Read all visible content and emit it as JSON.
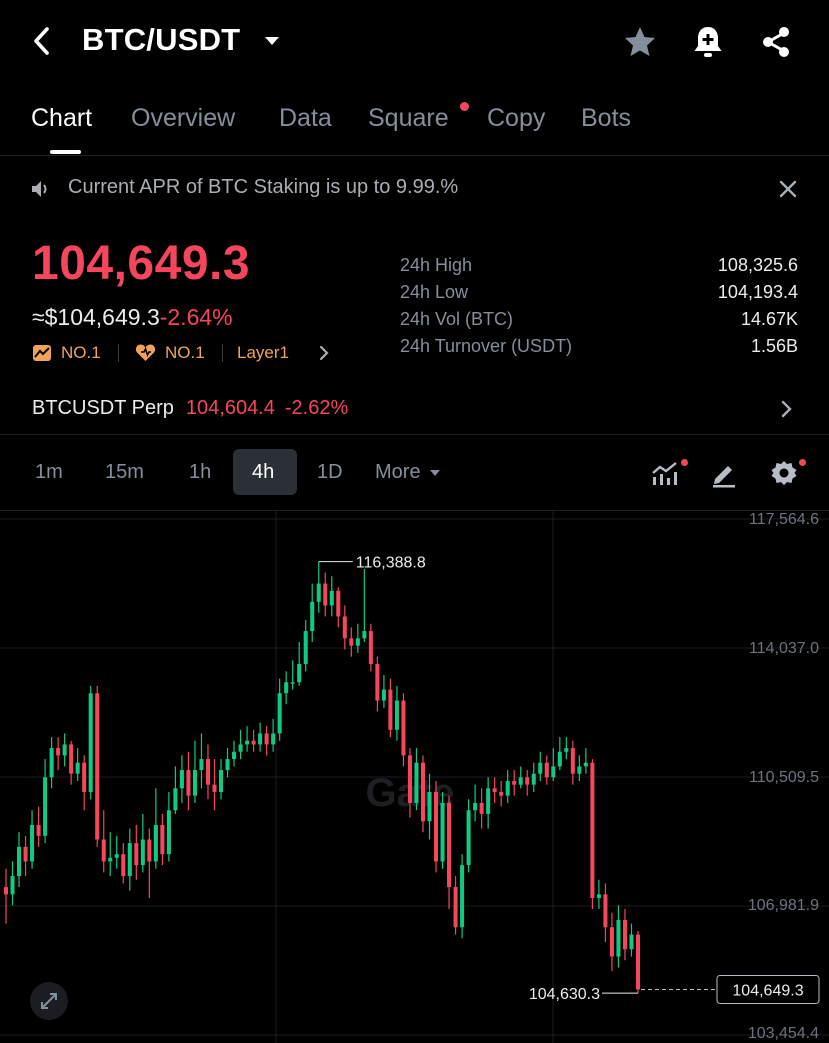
{
  "header": {
    "pair": "BTC/USDT"
  },
  "tabs": [
    {
      "label": "Chart",
      "active": true
    },
    {
      "label": "Overview",
      "active": false
    },
    {
      "label": "Data",
      "active": false
    },
    {
      "label": "Square",
      "active": false,
      "dot": true
    },
    {
      "label": "Copy",
      "active": false
    },
    {
      "label": "Bots",
      "active": false
    }
  ],
  "announcement": {
    "text": "Current APR of BTC Staking is up to 9.99.%"
  },
  "price": {
    "last": "104,649.3",
    "fiat": "≈$104,649.3",
    "change": "-2.64%",
    "tags": [
      "NO.1",
      "NO.1",
      "Layer1"
    ]
  },
  "stats": [
    {
      "label": "24h High",
      "value": "108,325.6"
    },
    {
      "label": "24h Low",
      "value": "104,193.4"
    },
    {
      "label": "24h Vol (BTC)",
      "value": "14.67K"
    },
    {
      "label": "24h Turnover (USDT)",
      "value": "1.56B"
    }
  ],
  "perp": {
    "name": "BTCUSDT Perp",
    "price": "104,604.4",
    "change": "-2.62%"
  },
  "intervals": {
    "items": [
      "1m",
      "15m",
      "1h",
      "4h",
      "1D"
    ],
    "active": "4h",
    "more_label": "More"
  },
  "chart_data": {
    "type": "candlestick",
    "y_ticks": [
      "117,564.6",
      "114,037.0",
      "110,509.5",
      "106,981.9",
      "103,454.4"
    ],
    "ylim": [
      103454.4,
      117564.6
    ],
    "high_marker": "116,388.8",
    "low_marker": "104,630.3",
    "last_price_label": "104,649.3",
    "colors": {
      "up": "#0ecb81",
      "down": "#f6465d"
    },
    "candles": [
      [
        107500,
        107300,
        108000,
        106500
      ],
      [
        107300,
        107800,
        108200,
        107000
      ],
      [
        107800,
        108600,
        109000,
        107500
      ],
      [
        108600,
        108200,
        108900,
        107800
      ],
      [
        108200,
        109200,
        109600,
        108000
      ],
      [
        109200,
        108900,
        109700,
        108600
      ],
      [
        108900,
        110500,
        111000,
        108700
      ],
      [
        110500,
        111300,
        111600,
        110200
      ],
      [
        111300,
        111100,
        111600,
        110700
      ],
      [
        111100,
        111400,
        111700,
        110800
      ],
      [
        111400,
        110600,
        111500,
        110300
      ],
      [
        110600,
        110900,
        111300,
        110400
      ],
      [
        110900,
        110100,
        111100,
        109600
      ],
      [
        110100,
        112800,
        113000,
        109900
      ],
      [
        112800,
        108800,
        113000,
        108600
      ],
      [
        108800,
        108200,
        109600,
        107900
      ],
      [
        108200,
        108300,
        109000,
        107800
      ],
      [
        108300,
        108400,
        108900,
        108000
      ],
      [
        108400,
        107800,
        108700,
        107600
      ],
      [
        107800,
        108700,
        109100,
        107400
      ],
      [
        108700,
        108100,
        109200,
        107700
      ],
      [
        108100,
        108800,
        109500,
        107900
      ],
      [
        108800,
        108200,
        109100,
        107200
      ],
      [
        108200,
        109200,
        110200,
        108000
      ],
      [
        109200,
        108400,
        109500,
        108100
      ],
      [
        108400,
        109600,
        110100,
        108200
      ],
      [
        109600,
        110200,
        110800,
        109500
      ],
      [
        110200,
        110700,
        111100,
        109800
      ],
      [
        110700,
        110000,
        111200,
        109600
      ],
      [
        110000,
        110700,
        111500,
        109800
      ],
      [
        110700,
        111000,
        111700,
        110200
      ],
      [
        111000,
        110300,
        111400,
        109900
      ],
      [
        110300,
        110100,
        111000,
        109600
      ],
      [
        110100,
        110700,
        111000,
        109900
      ],
      [
        110700,
        111000,
        111300,
        110500
      ],
      [
        111000,
        111200,
        111500,
        110800
      ],
      [
        111200,
        111400,
        111800,
        111000
      ],
      [
        111400,
        111500,
        111900,
        111200
      ],
      [
        111500,
        111400,
        111800,
        111200
      ],
      [
        111400,
        111700,
        112000,
        111200
      ],
      [
        111700,
        111400,
        111900,
        111100
      ],
      [
        111400,
        111700,
        112100,
        111200
      ],
      [
        111700,
        112800,
        113200,
        111500
      ],
      [
        112800,
        113100,
        113400,
        112500
      ],
      [
        113100,
        113100,
        113700,
        112900
      ],
      [
        113100,
        113600,
        114200,
        113000
      ],
      [
        113600,
        114500,
        114800,
        113400
      ],
      [
        114500,
        115300,
        115800,
        114200
      ],
      [
        115300,
        115800,
        116400,
        115000
      ],
      [
        115800,
        115200,
        116100,
        114900
      ],
      [
        115200,
        115600,
        116000,
        114900
      ],
      [
        115600,
        114900,
        115700,
        114600
      ],
      [
        114900,
        114300,
        115200,
        114000
      ],
      [
        114300,
        114100,
        114600,
        113800
      ],
      [
        114100,
        114300,
        114700,
        113900
      ],
      [
        114300,
        114500,
        116200,
        114200
      ],
      [
        114500,
        113600,
        114700,
        113400
      ],
      [
        113600,
        112600,
        113800,
        112300
      ],
      [
        112600,
        112900,
        113300,
        112400
      ],
      [
        112900,
        111800,
        113200,
        111600
      ],
      [
        111800,
        112600,
        113000,
        111500
      ],
      [
        112600,
        111100,
        112800,
        110800
      ],
      [
        111100,
        109800,
        111300,
        109400
      ],
      [
        109800,
        110900,
        111300,
        109600
      ],
      [
        110900,
        109300,
        111100,
        109000
      ],
      [
        109300,
        110100,
        110600,
        108800
      ],
      [
        110100,
        108200,
        110400,
        107900
      ],
      [
        108200,
        109800,
        110100,
        108000
      ],
      [
        109800,
        107500,
        110000,
        106900
      ],
      [
        107500,
        106400,
        107800,
        106200
      ],
      [
        106400,
        108100,
        108400,
        106100
      ],
      [
        108100,
        109600,
        109900,
        107900
      ],
      [
        109600,
        109800,
        110300,
        109300
      ],
      [
        109800,
        109500,
        110200,
        109100
      ],
      [
        109500,
        110200,
        110500,
        109100
      ],
      [
        110200,
        110100,
        110500,
        109800
      ],
      [
        110100,
        110000,
        110400,
        109700
      ],
      [
        110000,
        110400,
        110700,
        109800
      ],
      [
        110400,
        110300,
        110700,
        110000
      ],
      [
        110300,
        110500,
        110800,
        110200
      ],
      [
        110500,
        110300,
        110700,
        110000
      ],
      [
        110300,
        110600,
        110900,
        110100
      ],
      [
        110600,
        110900,
        111200,
        110400
      ],
      [
        110900,
        110500,
        111100,
        110300
      ],
      [
        110500,
        110800,
        111300,
        110400
      ],
      [
        110800,
        111200,
        111600,
        110700
      ],
      [
        111200,
        111300,
        111600,
        111000
      ],
      [
        111300,
        110600,
        111500,
        110300
      ],
      [
        110600,
        110800,
        111100,
        110400
      ],
      [
        110800,
        110900,
        111300,
        110600
      ],
      [
        110900,
        107200,
        111000,
        106900
      ],
      [
        107200,
        107300,
        107700,
        106900
      ],
      [
        107300,
        106400,
        107600,
        106000
      ],
      [
        106400,
        105600,
        106800,
        105200
      ],
      [
        105600,
        106600,
        107000,
        105300
      ],
      [
        106600,
        105800,
        106900,
        105500
      ],
      [
        105800,
        106200,
        106500,
        105600
      ],
      [
        106200,
        104700,
        106300,
        104600
      ]
    ]
  }
}
